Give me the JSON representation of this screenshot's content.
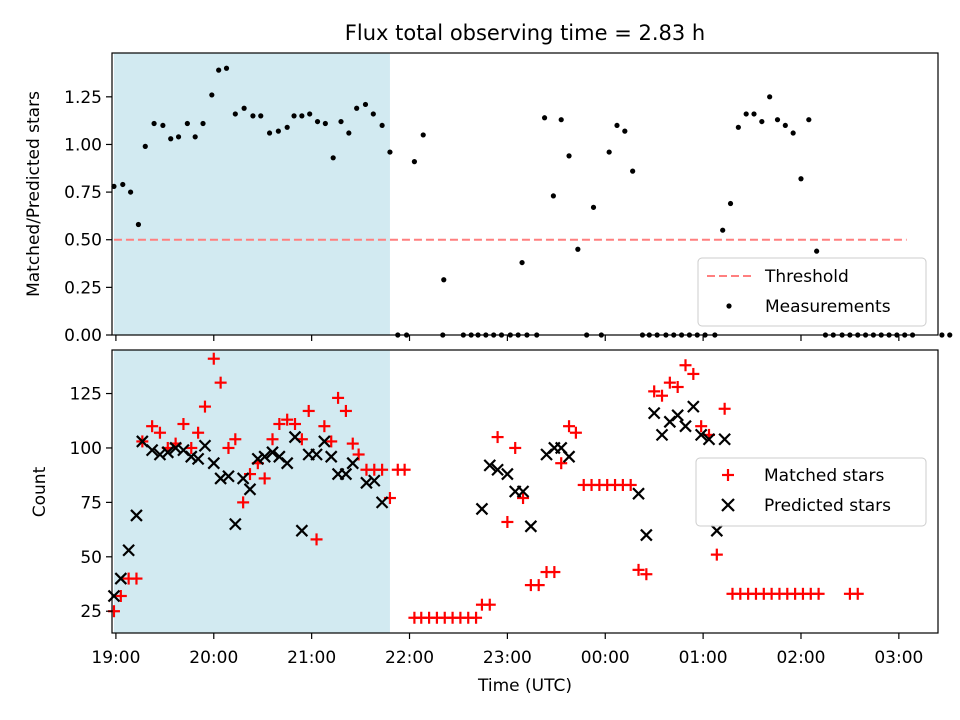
{
  "figure_title": "Flux total observing time = 2.83 h",
  "colors": {
    "shade": "#add8e6",
    "threshold": "#ff7f7f",
    "matched": "#ff0000",
    "predicted": "#000000",
    "measurement": "#000000"
  },
  "chart_data": [
    {
      "type": "scatter",
      "title": "Flux total observing time = 2.83 h",
      "xlabel": "",
      "ylabel": "Matched/Predicted stars",
      "xlim": [
        18.96,
        27.4
      ],
      "ylim": [
        0,
        1.48
      ],
      "yticks": [
        0,
        0.25,
        0.5,
        0.75,
        1.0,
        1.25
      ],
      "ytick_labels": [
        "0.00",
        "0.25",
        "0.50",
        "0.75",
        "1.00",
        "1.25"
      ],
      "xticks": [
        19,
        20,
        21,
        22,
        23,
        24,
        25,
        26,
        27
      ],
      "grid": false,
      "legend_position": "bottom-right",
      "shaded_span": [
        18.98,
        21.8
      ],
      "threshold": {
        "name": "Threshold",
        "value": 0.5,
        "x_range": [
          18.98,
          27.08
        ],
        "style": "dashed"
      },
      "series": [
        {
          "name": "Measurements",
          "marker": "dot",
          "points": [
            [
              18.98,
              0.78
            ],
            [
              19.07,
              0.79
            ],
            [
              19.15,
              0.75
            ],
            [
              19.23,
              0.58
            ],
            [
              19.3,
              0.99
            ],
            [
              19.39,
              1.11
            ],
            [
              19.48,
              1.1
            ],
            [
              19.56,
              1.03
            ],
            [
              19.64,
              1.04
            ],
            [
              19.73,
              1.11
            ],
            [
              19.81,
              1.04
            ],
            [
              19.89,
              1.11
            ],
            [
              19.98,
              1.26
            ],
            [
              20.05,
              1.39
            ],
            [
              20.13,
              1.4
            ],
            [
              20.22,
              1.16
            ],
            [
              20.31,
              1.19
            ],
            [
              20.4,
              1.15
            ],
            [
              20.48,
              1.15
            ],
            [
              20.57,
              1.06
            ],
            [
              20.66,
              1.07
            ],
            [
              20.75,
              1.09
            ],
            [
              20.82,
              1.15
            ],
            [
              20.9,
              1.15
            ],
            [
              20.98,
              1.16
            ],
            [
              21.06,
              1.12
            ],
            [
              21.14,
              1.11
            ],
            [
              21.22,
              0.93
            ],
            [
              21.3,
              1.12
            ],
            [
              21.38,
              1.06
            ],
            [
              21.46,
              1.19
            ],
            [
              21.55,
              1.21
            ],
            [
              21.63,
              1.16
            ],
            [
              21.72,
              1.1
            ],
            [
              21.8,
              0.96
            ],
            [
              21.88,
              0
            ],
            [
              21.97,
              0
            ],
            [
              22.05,
              0.91
            ],
            [
              22.14,
              1.05
            ],
            [
              22.35,
              0.29
            ],
            [
              22.34,
              0
            ],
            [
              22.55,
              0
            ],
            [
              22.63,
              0
            ],
            [
              22.7,
              0
            ],
            [
              22.78,
              0
            ],
            [
              22.86,
              0
            ],
            [
              22.94,
              0
            ],
            [
              23.03,
              0
            ],
            [
              23.11,
              0
            ],
            [
              23.2,
              0
            ],
            [
              23.15,
              0.38
            ],
            [
              23.3,
              0
            ],
            [
              23.38,
              1.14
            ],
            [
              23.47,
              0.73
            ],
            [
              23.55,
              1.13
            ],
            [
              23.63,
              0.94
            ],
            [
              23.72,
              0.45
            ],
            [
              23.81,
              0
            ],
            [
              23.88,
              0.67
            ],
            [
              23.96,
              0
            ],
            [
              24.04,
              0.96
            ],
            [
              24.12,
              1.1
            ],
            [
              24.2,
              1.07
            ],
            [
              24.28,
              0.86
            ],
            [
              24.38,
              0
            ],
            [
              24.45,
              0
            ],
            [
              24.53,
              0
            ],
            [
              24.62,
              0
            ],
            [
              24.7,
              0
            ],
            [
              24.78,
              0
            ],
            [
              24.86,
              0
            ],
            [
              24.94,
              0
            ],
            [
              25.02,
              0
            ],
            [
              25.12,
              0
            ],
            [
              25.2,
              0.55
            ],
            [
              25.28,
              0.69
            ],
            [
              25.36,
              1.09
            ],
            [
              25.44,
              1.16
            ],
            [
              25.52,
              1.16
            ],
            [
              25.6,
              1.12
            ],
            [
              25.68,
              1.25
            ],
            [
              25.76,
              1.13
            ],
            [
              25.84,
              1.1
            ],
            [
              25.92,
              1.06
            ],
            [
              26.0,
              0.82
            ],
            [
              26.08,
              1.13
            ],
            [
              26.16,
              0.44
            ],
            [
              26.25,
              0
            ],
            [
              26.33,
              0
            ],
            [
              26.42,
              0
            ],
            [
              26.5,
              0
            ],
            [
              26.58,
              0
            ],
            [
              26.66,
              0
            ],
            [
              26.74,
              0
            ],
            [
              26.82,
              0
            ],
            [
              26.9,
              0
            ],
            [
              26.98,
              0
            ],
            [
              27.06,
              0
            ],
            [
              27.14,
              0
            ],
            [
              27.44,
              0
            ],
            [
              27.52,
              0
            ]
          ]
        }
      ]
    },
    {
      "type": "scatter",
      "title": "",
      "xlabel": "Time (UTC)",
      "ylabel": "Count",
      "xlim": [
        18.96,
        27.4
      ],
      "ylim": [
        15,
        145
      ],
      "yticks": [
        25,
        50,
        75,
        100,
        125
      ],
      "ytick_labels": [
        "25",
        "50",
        "75",
        "100",
        "125"
      ],
      "xticks": [
        19,
        20,
        21,
        22,
        23,
        24,
        25,
        26,
        27
      ],
      "xtick_labels": [
        "19:00",
        "20:00",
        "21:00",
        "22:00",
        "23:00",
        "00:00",
        "01:00",
        "02:00",
        "03:00"
      ],
      "grid": false,
      "legend_position": "right",
      "shaded_span": [
        18.98,
        21.8
      ],
      "series": [
        {
          "name": "Matched stars",
          "marker": "plus",
          "points": [
            [
              18.98,
              25
            ],
            [
              19.05,
              32
            ],
            [
              19.13,
              40
            ],
            [
              19.21,
              40
            ],
            [
              19.27,
              103
            ],
            [
              19.37,
              110
            ],
            [
              19.45,
              107
            ],
            [
              19.53,
              100
            ],
            [
              19.61,
              102
            ],
            [
              19.69,
              111
            ],
            [
              19.77,
              100
            ],
            [
              19.84,
              107
            ],
            [
              19.91,
              119
            ],
            [
              20.0,
              141
            ],
            [
              20.07,
              130
            ],
            [
              20.15,
              100
            ],
            [
              20.22,
              104
            ],
            [
              20.3,
              75
            ],
            [
              20.37,
              88
            ],
            [
              20.45,
              93
            ],
            [
              20.52,
              86
            ],
            [
              20.6,
              104
            ],
            [
              20.67,
              111
            ],
            [
              20.75,
              113
            ],
            [
              20.83,
              111
            ],
            [
              20.9,
              104
            ],
            [
              20.97,
              117
            ],
            [
              21.05,
              58
            ],
            [
              21.13,
              110
            ],
            [
              21.2,
              103
            ],
            [
              21.27,
              123
            ],
            [
              21.35,
              117
            ],
            [
              21.42,
              102
            ],
            [
              21.48,
              97
            ],
            [
              21.56,
              90
            ],
            [
              21.64,
              90
            ],
            [
              21.72,
              90
            ],
            [
              21.8,
              77
            ],
            [
              21.88,
              90
            ],
            [
              21.95,
              90
            ],
            [
              22.05,
              22
            ],
            [
              22.12,
              22
            ],
            [
              22.2,
              22
            ],
            [
              22.28,
              22
            ],
            [
              22.36,
              22
            ],
            [
              22.44,
              22
            ],
            [
              22.52,
              22
            ],
            [
              22.6,
              22
            ],
            [
              22.68,
              22
            ],
            [
              22.74,
              28
            ],
            [
              22.82,
              28
            ],
            [
              22.9,
              105
            ],
            [
              23.0,
              66
            ],
            [
              23.08,
              100
            ],
            [
              23.16,
              77
            ],
            [
              23.24,
              37
            ],
            [
              23.32,
              37
            ],
            [
              23.4,
              43
            ],
            [
              23.48,
              43
            ],
            [
              23.55,
              93
            ],
            [
              23.63,
              110
            ],
            [
              23.7,
              107
            ],
            [
              23.78,
              83
            ],
            [
              23.86,
              83
            ],
            [
              23.94,
              83
            ],
            [
              24.02,
              83
            ],
            [
              24.1,
              83
            ],
            [
              24.18,
              83
            ],
            [
              24.26,
              83
            ],
            [
              24.34,
              44
            ],
            [
              24.42,
              42
            ],
            [
              24.5,
              126
            ],
            [
              24.58,
              124
            ],
            [
              24.66,
              130
            ],
            [
              24.74,
              128
            ],
            [
              24.82,
              138
            ],
            [
              24.9,
              134
            ],
            [
              24.98,
              110
            ],
            [
              25.06,
              106
            ],
            [
              25.14,
              51
            ],
            [
              25.22,
              118
            ],
            [
              25.3,
              33
            ],
            [
              25.38,
              33
            ],
            [
              25.46,
              33
            ],
            [
              25.54,
              33
            ],
            [
              25.62,
              33
            ],
            [
              25.7,
              33
            ],
            [
              25.78,
              33
            ],
            [
              25.86,
              33
            ],
            [
              25.94,
              33
            ],
            [
              26.02,
              33
            ],
            [
              26.1,
              33
            ],
            [
              26.18,
              33
            ],
            [
              26.5,
              33
            ],
            [
              26.58,
              33
            ]
          ]
        },
        {
          "name": "Predicted stars",
          "marker": "x",
          "points": [
            [
              18.98,
              32
            ],
            [
              19.05,
              40
            ],
            [
              19.13,
              53
            ],
            [
              19.21,
              69
            ],
            [
              19.27,
              103
            ],
            [
              19.37,
              99
            ],
            [
              19.45,
              97
            ],
            [
              19.53,
              98
            ],
            [
              19.61,
              100
            ],
            [
              19.69,
              99
            ],
            [
              19.77,
              96
            ],
            [
              19.84,
              95
            ],
            [
              19.91,
              101
            ],
            [
              20.0,
              93
            ],
            [
              20.07,
              86
            ],
            [
              20.15,
              87
            ],
            [
              20.22,
              65
            ],
            [
              20.3,
              86
            ],
            [
              20.37,
              81
            ],
            [
              20.45,
              95
            ],
            [
              20.52,
              96
            ],
            [
              20.6,
              98
            ],
            [
              20.67,
              96
            ],
            [
              20.75,
              93
            ],
            [
              20.83,
              105
            ],
            [
              20.9,
              62
            ],
            [
              20.97,
              97
            ],
            [
              21.05,
              97
            ],
            [
              21.13,
              103
            ],
            [
              21.2,
              96
            ],
            [
              21.27,
              88
            ],
            [
              21.35,
              88
            ],
            [
              21.42,
              93
            ],
            [
              21.56,
              84
            ],
            [
              21.64,
              85
            ],
            [
              21.72,
              75
            ],
            [
              22.74,
              72
            ],
            [
              22.82,
              92
            ],
            [
              22.9,
              90
            ],
            [
              23.0,
              88
            ],
            [
              23.08,
              80
            ],
            [
              23.16,
              80
            ],
            [
              23.24,
              64
            ],
            [
              23.4,
              97
            ],
            [
              23.48,
              100
            ],
            [
              23.55,
              100
            ],
            [
              23.63,
              96
            ],
            [
              24.34,
              79
            ],
            [
              24.42,
              60
            ],
            [
              24.5,
              116
            ],
            [
              24.58,
              106
            ],
            [
              24.66,
              112
            ],
            [
              24.74,
              115
            ],
            [
              24.82,
              110
            ],
            [
              24.9,
              119
            ],
            [
              24.98,
              106
            ],
            [
              25.06,
              104
            ],
            [
              25.14,
              62
            ],
            [
              25.22,
              104
            ]
          ]
        }
      ]
    }
  ]
}
